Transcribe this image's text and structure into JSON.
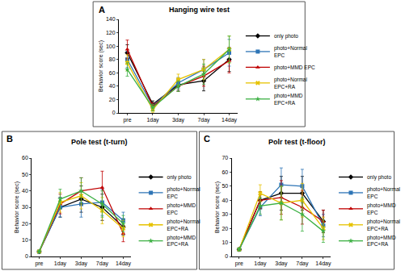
{
  "chart_data": [
    {
      "type": "line",
      "title": "Hanging wire test",
      "annotations": [
        "A"
      ],
      "ylabel": "Behavior score (sec)",
      "categories": [
        "pre",
        "1day",
        "3day",
        "7day",
        "14day"
      ],
      "ylim": [
        0,
        140
      ],
      "yticks": [
        0,
        20,
        40,
        60,
        80,
        100,
        120,
        140
      ],
      "grid": false,
      "series": [
        {
          "name": "only photo",
          "color": "#000000",
          "marker": "diamond",
          "values": [
            90,
            13,
            42,
            48,
            80
          ],
          "errors": [
            12,
            5,
            8,
            15,
            18
          ]
        },
        {
          "name": "photo+Normal\nEPC",
          "color": "#2e75b6",
          "marker": "square",
          "values": [
            80,
            10,
            45,
            65,
            90
          ],
          "errors": [
            12,
            5,
            8,
            15,
            20
          ]
        },
        {
          "name": "photo+MMD EPC",
          "color": "#c00000",
          "marker": "triangle",
          "values": [
            95,
            10,
            40,
            55,
            78
          ],
          "errors": [
            14,
            5,
            8,
            15,
            18
          ]
        },
        {
          "name": "photo+Normal\nEPC+RA",
          "color": "#e6c200",
          "marker": "x",
          "values": [
            75,
            5,
            50,
            65,
            95
          ],
          "errors": [
            12,
            5,
            8,
            15,
            20
          ]
        },
        {
          "name": "photo+MMD\nEPC+RA",
          "color": "#3cb043",
          "marker": "star",
          "values": [
            65,
            8,
            40,
            58,
            95
          ],
          "errors": [
            10,
            5,
            8,
            15,
            20
          ]
        }
      ]
    },
    {
      "type": "line",
      "title": "Pole test (t-turn)",
      "annotations": [
        "B"
      ],
      "ylabel": "Behavior score (sec)",
      "categories": [
        "pre",
        "1day",
        "3day",
        "7day",
        "14day"
      ],
      "ylim": [
        0,
        60
      ],
      "yticks": [
        0,
        10,
        20,
        30,
        40,
        50,
        60
      ],
      "grid": false,
      "series": [
        {
          "name": "only photo",
          "color": "#000000",
          "marker": "diamond",
          "values": [
            3,
            30,
            35,
            30,
            18
          ],
          "errors": [
            0.5,
            6,
            8,
            8,
            5
          ]
        },
        {
          "name": "photo+Normal\nEPC",
          "color": "#2e75b6",
          "marker": "square",
          "values": [
            3,
            30,
            32,
            33,
            22
          ],
          "errors": [
            0.5,
            6,
            8,
            8,
            5
          ]
        },
        {
          "name": "photo+MMD\nEPC",
          "color": "#c00000",
          "marker": "triangle",
          "values": [
            3,
            32,
            40,
            42,
            14
          ],
          "errors": [
            0.5,
            6,
            8,
            10,
            5
          ]
        },
        {
          "name": "photo+Normal\nEPC+RA",
          "color": "#e6c200",
          "marker": "x",
          "values": [
            3,
            33,
            37,
            28,
            17
          ],
          "errors": [
            0.5,
            6,
            8,
            8,
            5
          ]
        },
        {
          "name": "photo+MMD\nEPC+RA",
          "color": "#3cb043",
          "marker": "star",
          "values": [
            3,
            35,
            40,
            32,
            20
          ],
          "errors": [
            0.5,
            6,
            8,
            8,
            5
          ]
        }
      ]
    },
    {
      "type": "line",
      "title": "Polr test (t-floor)",
      "annotations": [
        "C"
      ],
      "ylabel": "Behavior score (sec)",
      "categories": [
        "pre",
        "1day",
        "3day",
        "7day",
        "14day"
      ],
      "ylim": [
        0,
        70
      ],
      "yticks": [
        0,
        10,
        20,
        30,
        40,
        50,
        60,
        70
      ],
      "grid": false,
      "series": [
        {
          "name": "only photo",
          "color": "#000000",
          "marker": "diamond",
          "values": [
            5,
            40,
            45,
            45,
            25
          ],
          "errors": [
            1,
            6,
            12,
            12,
            8
          ]
        },
        {
          "name": "photo+Normal\nEPC",
          "color": "#2e75b6",
          "marker": "square",
          "values": [
            5,
            35,
            51,
            50,
            22
          ],
          "errors": [
            1,
            6,
            12,
            12,
            8
          ]
        },
        {
          "name": "photo+MMD\nEPC",
          "color": "#c00000",
          "marker": "triangle",
          "values": [
            5,
            40,
            42,
            35,
            25
          ],
          "errors": [
            1,
            6,
            12,
            12,
            8
          ]
        },
        {
          "name": "photo+Normal\nEPC+RA",
          "color": "#e6c200",
          "marker": "x",
          "values": [
            5,
            45,
            38,
            40,
            20
          ],
          "errors": [
            1,
            6,
            12,
            12,
            8
          ]
        },
        {
          "name": "photo+MMD\nEPC+RA",
          "color": "#3cb043",
          "marker": "star",
          "values": [
            5,
            36,
            38,
            30,
            18
          ],
          "errors": [
            1,
            6,
            12,
            12,
            8
          ]
        }
      ]
    }
  ]
}
